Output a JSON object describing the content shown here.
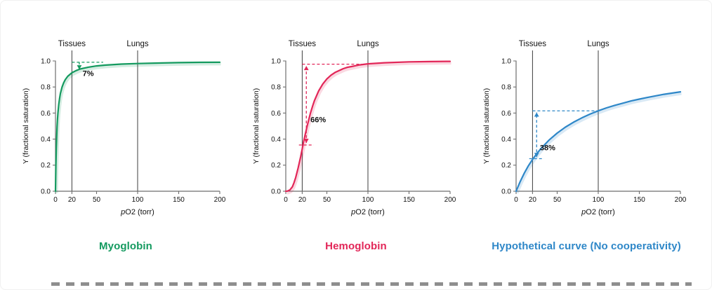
{
  "chart_data": [
    {
      "type": "line",
      "caption": "Myoglobin",
      "color": "#149a5f",
      "xlabel": "pO2 (torr)",
      "ylabel": "Y (fractional saturation)",
      "xlim": [
        0,
        200
      ],
      "ylim": [
        0,
        1.0
      ],
      "x_ticks": [
        0,
        20,
        50,
        100,
        150,
        200
      ],
      "y_ticks": [
        0.0,
        0.2,
        0.4,
        0.6,
        0.8,
        1.0
      ],
      "grid": false,
      "vlines": [
        {
          "label": "Tissues",
          "x": 20
        },
        {
          "label": "Lungs",
          "x": 100
        }
      ],
      "series": [
        {
          "name": "Myoglobin",
          "points": [
            [
              0,
              0
            ],
            [
              0.5,
              0.2
            ],
            [
              1,
              0.333
            ],
            [
              1.5,
              0.429
            ],
            [
              2,
              0.5
            ],
            [
              2.5,
              0.556
            ],
            [
              3,
              0.6
            ],
            [
              4,
              0.667
            ],
            [
              5,
              0.714
            ],
            [
              6,
              0.75
            ],
            [
              8,
              0.8
            ],
            [
              10,
              0.833
            ],
            [
              12,
              0.857
            ],
            [
              15,
              0.882
            ],
            [
              20,
              0.909
            ],
            [
              25,
              0.926
            ],
            [
              30,
              0.938
            ],
            [
              40,
              0.952
            ],
            [
              50,
              0.962
            ],
            [
              60,
              0.968
            ],
            [
              80,
              0.976
            ],
            [
              100,
              0.98
            ],
            [
              125,
              0.984
            ],
            [
              150,
              0.987
            ],
            [
              175,
              0.989
            ],
            [
              200,
              0.99
            ]
          ]
        }
      ],
      "annotations": [
        {
          "type": "hline",
          "y": 0.99,
          "x1": 20,
          "x2": 58
        },
        {
          "type": "varrow",
          "x": 29,
          "y1": 0.935,
          "y2": 0.99,
          "heads": "down"
        },
        {
          "type": "label",
          "text": "7%",
          "x": 33,
          "y": 0.885
        }
      ]
    },
    {
      "type": "line",
      "caption": "Hemoglobin",
      "color": "#e22658",
      "xlabel": "pO2 (torr)",
      "ylabel": "Y (fractional saturation)",
      "xlim": [
        0,
        200
      ],
      "ylim": [
        0,
        1.0
      ],
      "x_ticks": [
        0,
        20,
        50,
        100,
        150,
        200
      ],
      "y_ticks": [
        0.0,
        0.2,
        0.4,
        0.6,
        0.8,
        1.0
      ],
      "grid": false,
      "vlines": [
        {
          "label": "Tissues",
          "x": 20
        },
        {
          "label": "Lungs",
          "x": 100
        }
      ],
      "series": [
        {
          "name": "Hemoglobin",
          "points": [
            [
              0,
              0
            ],
            [
              2,
              0.001
            ],
            [
              5,
              0.01
            ],
            [
              8,
              0.034
            ],
            [
              10,
              0.065
            ],
            [
              12,
              0.103
            ],
            [
              15,
              0.177
            ],
            [
              18,
              0.263
            ],
            [
              20,
              0.324
            ],
            [
              22,
              0.39
            ],
            [
              25,
              0.473
            ],
            [
              26,
              0.5
            ],
            [
              28,
              0.55
            ],
            [
              30,
              0.599
            ],
            [
              33,
              0.66
            ],
            [
              35,
              0.697
            ],
            [
              40,
              0.77
            ],
            [
              45,
              0.823
            ],
            [
              50,
              0.862
            ],
            [
              55,
              0.891
            ],
            [
              60,
              0.912
            ],
            [
              70,
              0.941
            ],
            [
              75,
              0.951
            ],
            [
              80,
              0.957
            ],
            [
              90,
              0.97
            ],
            [
              100,
              0.978
            ],
            [
              120,
              0.986
            ],
            [
              150,
              0.993
            ],
            [
              175,
              0.995
            ],
            [
              200,
              0.997
            ]
          ]
        }
      ],
      "annotations": [
        {
          "type": "hline",
          "y": 0.975,
          "x1": 20,
          "x2": 100
        },
        {
          "type": "hline",
          "y": 0.355,
          "x1": 16,
          "x2": 34
        },
        {
          "type": "varrow",
          "x": 25,
          "y1": 0.37,
          "y2": 0.962,
          "heads": "both"
        },
        {
          "type": "label",
          "text": "66%",
          "x": 30,
          "y": 0.53
        }
      ]
    },
    {
      "type": "line",
      "caption": "Hypothetical curve (No cooperativity)",
      "color": "#2e87c8",
      "xlabel": "pO2 (torr)",
      "ylabel": "Y (fractional saturation)",
      "xlim": [
        0,
        200
      ],
      "ylim": [
        0,
        1.0
      ],
      "x_ticks": [
        0,
        20,
        50,
        100,
        150,
        200
      ],
      "y_ticks": [
        0.0,
        0.2,
        0.4,
        0.6,
        0.8,
        1.0
      ],
      "grid": false,
      "vlines": [
        {
          "label": "Tissues",
          "x": 20
        },
        {
          "label": "Lungs",
          "x": 100
        }
      ],
      "series": [
        {
          "name": "Hypothetical (no cooperativity)",
          "points": [
            [
              0,
              0
            ],
            [
              5,
              0.075
            ],
            [
              10,
              0.139
            ],
            [
              15,
              0.195
            ],
            [
              20,
              0.244
            ],
            [
              25,
              0.287
            ],
            [
              30,
              0.326
            ],
            [
              40,
              0.392
            ],
            [
              50,
              0.446
            ],
            [
              60,
              0.492
            ],
            [
              70,
              0.53
            ],
            [
              80,
              0.563
            ],
            [
              90,
              0.592
            ],
            [
              100,
              0.617
            ],
            [
              110,
              0.64
            ],
            [
              120,
              0.659
            ],
            [
              140,
              0.693
            ],
            [
              150,
              0.707
            ],
            [
              160,
              0.72
            ],
            [
              180,
              0.744
            ],
            [
              200,
              0.763
            ]
          ]
        }
      ],
      "annotations": [
        {
          "type": "hline",
          "y": 0.617,
          "x1": 20,
          "x2": 100
        },
        {
          "type": "hline",
          "y": 0.25,
          "x1": 16,
          "x2": 34
        },
        {
          "type": "varrow",
          "x": 25,
          "y1": 0.262,
          "y2": 0.605,
          "heads": "both"
        },
        {
          "type": "label",
          "text": "38%",
          "x": 29,
          "y": 0.315
        }
      ]
    }
  ]
}
